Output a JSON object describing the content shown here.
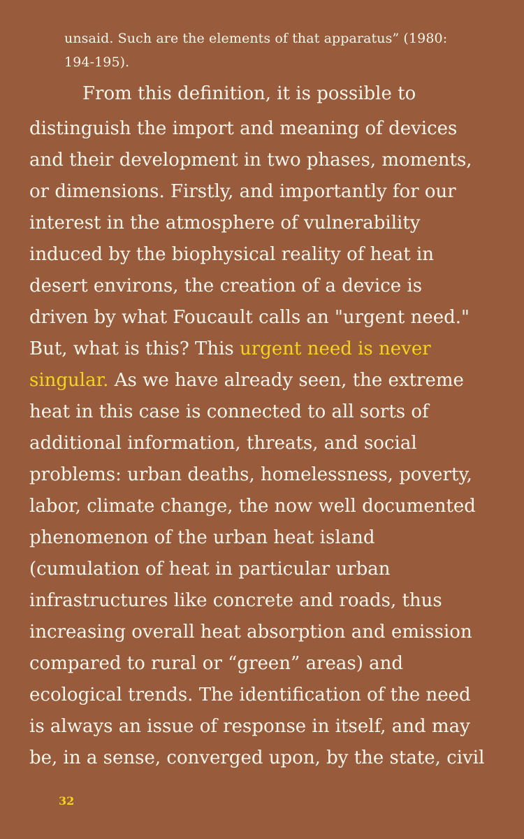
{
  "quote": {
    "lines": [
      "unsaid. Such are the elements of that apparatus” (1980:",
      "194-195)."
    ]
  },
  "body": {
    "lines": [
      "From this definition, it is possible to",
      "distinguish the import and meaning of devices",
      "and their development in two phases, moments,",
      "or dimensions. Firstly, and importantly for our",
      "interest in the atmosphere of vulnerability",
      "induced by the biophysical reality of heat in",
      "desert environs, the creation of a device is",
      "driven by what Foucault calls an \"urgent need.\"",
      "But, what is this? This ",
      "urgent need is never",
      "singular.",
      " As we have already seen, the extreme",
      "heat in this case is connected to all sorts of",
      "additional information, threats, and social",
      "problems: urban deaths, homelessness, poverty,",
      "labor, climate change, the now well documented",
      "phenomenon of the urban heat island",
      "(cumulation of heat in particular urban",
      "infrastructures like concrete and roads, thus",
      "increasing overall heat absorption and emission",
      "compared to rural or “green” areas) and",
      "ecological trends. The identification of the need",
      "is always an issue of response in itself, and may",
      "be, in a sense, converged upon, by the state, civil"
    ]
  },
  "page_number": "32",
  "colors": {
    "background": "#985b3b",
    "text": "#fbf6ec",
    "highlight": "#f6d41d"
  }
}
